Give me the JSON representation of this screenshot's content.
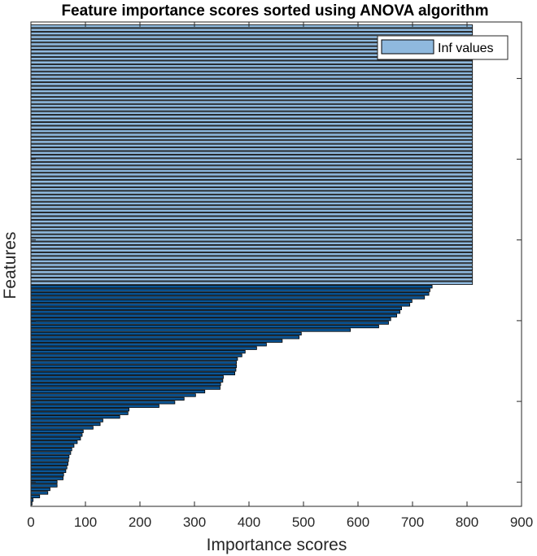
{
  "chart_data": {
    "type": "bar",
    "orientation": "horizontal",
    "title": "Feature importance scores sorted using ANOVA algorithm",
    "xlabel": "Importance scores",
    "ylabel": "Features",
    "xlim": [
      0,
      900
    ],
    "xticks": [
      0,
      100,
      200,
      300,
      400,
      500,
      600,
      700,
      800,
      900
    ],
    "grid": false,
    "legend": {
      "entries": [
        "Inf values"
      ],
      "placement": "top-right"
    },
    "colors": {
      "inf": "#8fb9de",
      "finite": "#0b5595",
      "edge": "#000000"
    },
    "series": [
      {
        "name": "Inf values",
        "values": [
          810,
          810,
          810,
          810,
          810,
          810,
          810,
          810,
          810,
          810,
          810,
          810,
          810,
          810,
          810,
          810,
          810,
          810,
          810,
          810,
          810,
          810,
          810,
          810,
          810,
          810,
          810,
          810,
          810,
          810,
          810,
          810,
          810,
          810,
          810,
          810,
          810,
          810,
          810,
          810,
          810,
          810,
          810,
          810,
          810,
          810,
          810,
          810,
          810,
          810,
          810,
          810,
          810,
          810,
          810,
          810,
          810,
          810,
          810,
          810,
          810,
          810,
          810,
          810,
          810,
          810,
          810,
          810,
          810,
          810,
          810,
          810
        ]
      },
      {
        "values": [
          736,
          732,
          730,
          722,
          699,
          695,
          680,
          677,
          671,
          660,
          656,
          638,
          586,
          496,
          492,
          461,
          432,
          414,
          393,
          387,
          379,
          377,
          377,
          376,
          374,
          353,
          352,
          348,
          347,
          319,
          302,
          281,
          264,
          235,
          180,
          178,
          163,
          132,
          127,
          114,
          96,
          94,
          91,
          85,
          79,
          75,
          73,
          70,
          69,
          68,
          66,
          64,
          60,
          59,
          48,
          48,
          35,
          31,
          16,
          4,
          2
        ]
      }
    ]
  }
}
